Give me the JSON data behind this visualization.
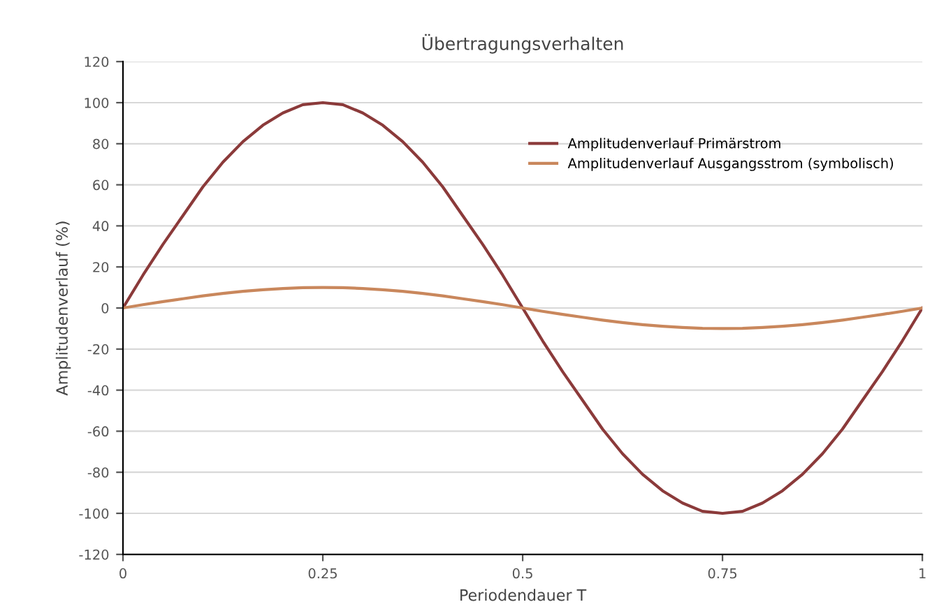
{
  "chart_data": {
    "type": "line",
    "title": "Übertragungsverhalten",
    "xlabel": "Periodendauer T",
    "ylabel": "Amplitudenverlauf (%)",
    "x": [
      0,
      0.025,
      0.05,
      0.075,
      0.1,
      0.125,
      0.15,
      0.175,
      0.2,
      0.225,
      0.25,
      0.275,
      0.3,
      0.325,
      0.35,
      0.375,
      0.4,
      0.425,
      0.45,
      0.475,
      0.5,
      0.525,
      0.55,
      0.575,
      0.6,
      0.625,
      0.65,
      0.675,
      0.7,
      0.725,
      0.75,
      0.775,
      0.8,
      0.825,
      0.85,
      0.875,
      0.9,
      0.925,
      0.95,
      0.975,
      1
    ],
    "series": [
      {
        "name": "Amplitudenverlauf Primärstrom",
        "color": "#8b3a3a",
        "values": [
          0,
          16,
          31,
          45,
          59,
          71,
          81,
          89,
          95,
          99,
          100,
          99,
          95,
          89,
          81,
          71,
          59,
          45,
          31,
          16,
          0,
          -16,
          -31,
          -45,
          -59,
          -71,
          -81,
          -89,
          -95,
          -99,
          -100,
          -99,
          -95,
          -89,
          -81,
          -71,
          -59,
          -45,
          -31,
          -16,
          0
        ]
      },
      {
        "name": "Amplitudenverlauf Ausgangsstrom (symbolisch)",
        "color": "#c9875c",
        "values": [
          0,
          1.6,
          3.1,
          4.5,
          5.9,
          7.1,
          8.1,
          8.9,
          9.5,
          9.9,
          10,
          9.9,
          9.5,
          8.9,
          8.1,
          7.1,
          5.9,
          4.5,
          3.1,
          1.6,
          0,
          -1.6,
          -3.1,
          -4.5,
          -5.9,
          -7.1,
          -8.1,
          -8.9,
          -9.5,
          -9.9,
          -10,
          -9.9,
          -9.5,
          -8.9,
          -8.1,
          -7.1,
          -5.9,
          -4.5,
          -3.1,
          -1.6,
          0
        ]
      }
    ],
    "xlim": [
      0,
      1
    ],
    "xticks": [
      0,
      0.25,
      0.5,
      0.75,
      1
    ],
    "ylim": [
      -120,
      120
    ],
    "yticks": [
      -120,
      -100,
      -80,
      -60,
      -40,
      -20,
      0,
      20,
      40,
      60,
      80,
      100,
      120
    ],
    "grid": "y",
    "legend": "top right",
    "marker": "none",
    "line_style": "solid"
  }
}
